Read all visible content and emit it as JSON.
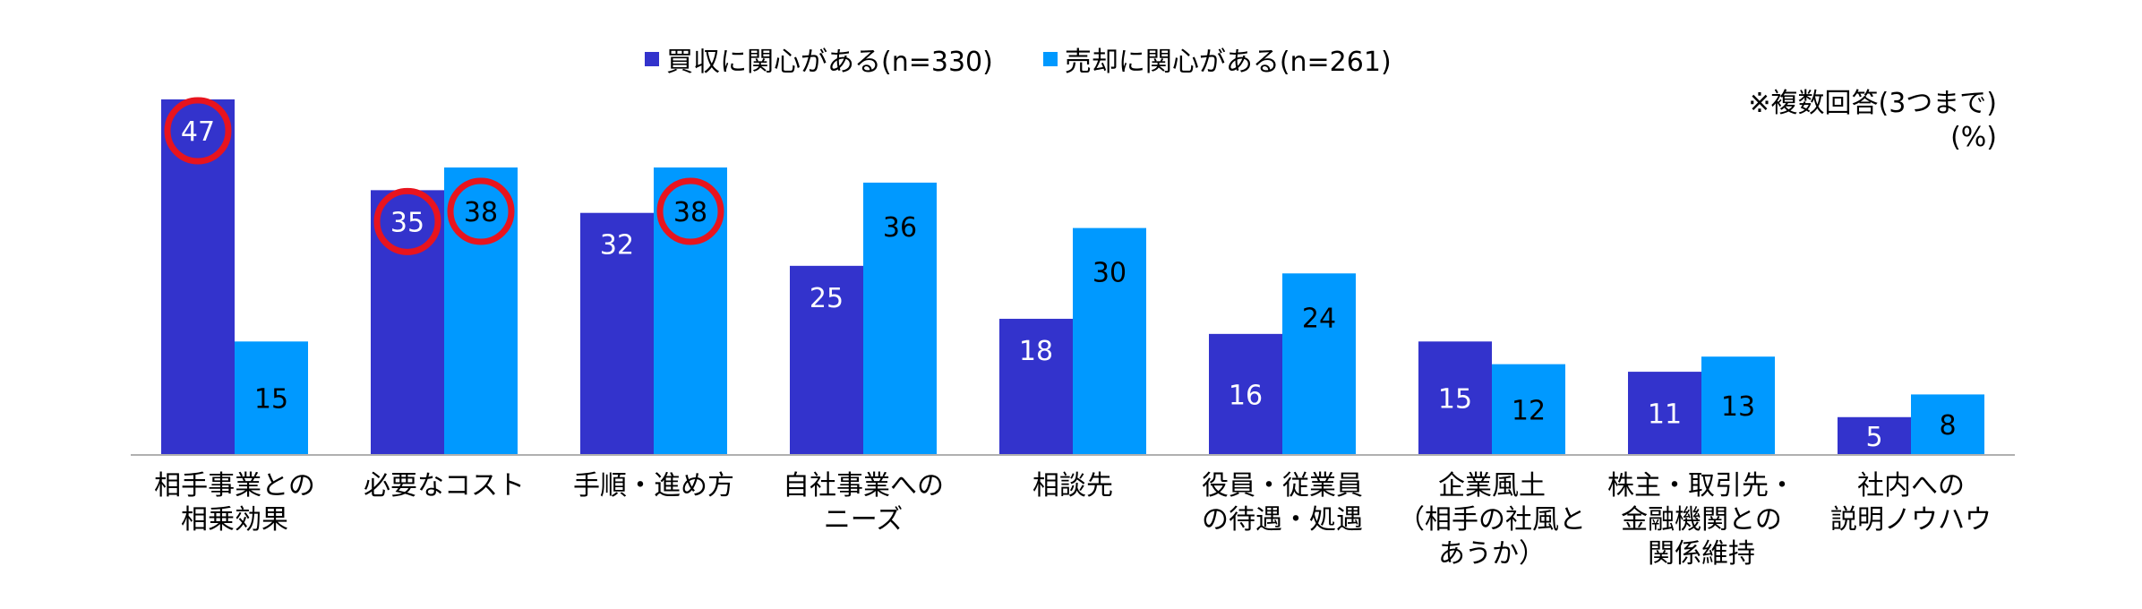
{
  "chart_data": {
    "type": "bar",
    "categories": [
      "相手事業との\n相乗効果",
      "必要なコスト",
      "手順・進め方",
      "自社事業への\nニーズ",
      "相談先",
      "役員・従業員\nの待遇・処遇",
      "企業風土\n（相手の社風と\nあうか）",
      "株主・取引先・\n金融機関との\n関係維持",
      "社内への\n説明ノウハウ"
    ],
    "series": [
      {
        "name": "買収に関心がある(n=330)",
        "color": "#3333cc",
        "values": [
          47,
          35,
          32,
          25,
          18,
          16,
          15,
          11,
          5
        ]
      },
      {
        "name": "売却に関心がある(n=261)",
        "color": "#0099ff",
        "values": [
          15,
          38,
          38,
          36,
          30,
          24,
          12,
          13,
          8
        ]
      }
    ],
    "highlighted": [
      {
        "series": 0,
        "category": 0
      },
      {
        "series": 0,
        "category": 1
      },
      {
        "series": 1,
        "category": 1
      },
      {
        "series": 1,
        "category": 2
      }
    ],
    "highlight_color": "#e8141e",
    "note": "※複数回答(3つまで)",
    "unit": "(%)",
    "ylim": [
      0,
      50
    ],
    "grid": false,
    "legend_position": "top-center",
    "title": "",
    "xlabel": "",
    "ylabel": ""
  }
}
